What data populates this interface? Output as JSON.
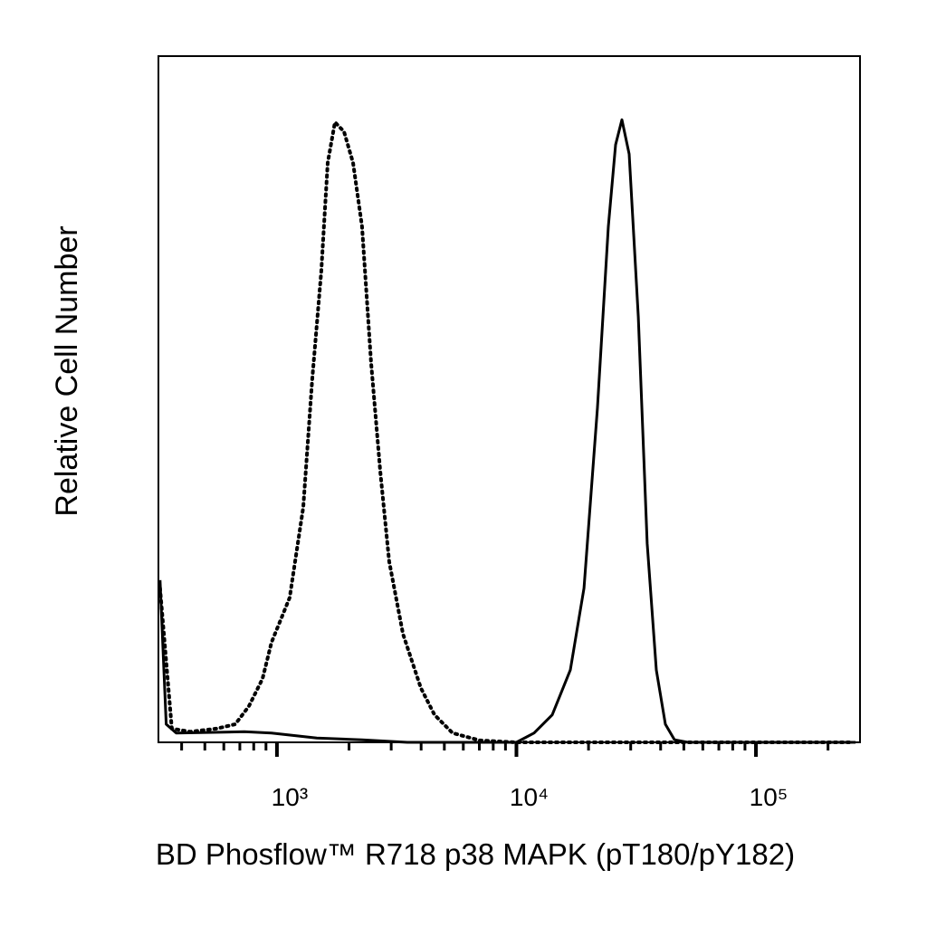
{
  "chart_data": {
    "type": "line",
    "x_label": "BD Phosflow™ R718 p38 MAPK (pT180/pY182)",
    "y_label": "Relative Cell Number",
    "xscale": "log",
    "xlim": [
      320,
      272000
    ],
    "ylim": [
      0,
      110
    ],
    "xticks": [
      {
        "value": 1000,
        "label": "10³"
      },
      {
        "value": 10000,
        "label": "10⁴"
      },
      {
        "value": 100000,
        "label": "10⁵"
      }
    ],
    "xminorticks": [
      400,
      500,
      600,
      700,
      800,
      900,
      2000,
      3000,
      4000,
      5000,
      6000,
      7000,
      8000,
      9000,
      20000,
      30000,
      40000,
      50000,
      60000,
      70000,
      80000,
      90000,
      200000
    ],
    "series": [
      {
        "color": "#000000",
        "dash": "dotted",
        "x": [
          325,
          364,
          434,
          562,
          670,
          764,
          871,
          949,
          1130,
          1288,
          1403,
          1531,
          1629,
          1746,
          1905,
          2078,
          2266,
          2473,
          2698,
          2942,
          3357,
          3990,
          4549,
          5412,
          7030,
          10000,
          30900,
          249000
        ],
        "values": [
          24.7,
          2.2,
          1.7,
          2.2,
          2.9,
          5.8,
          10.2,
          16.0,
          23.2,
          37.7,
          58.0,
          75.5,
          92.9,
          99.4,
          97.9,
          92.9,
          82.7,
          60.9,
          43.5,
          29.0,
          17.4,
          8.7,
          4.4,
          1.5,
          0.3,
          0,
          0,
          0
        ]
      },
      {
        "color": "#000000",
        "dash": "solid",
        "x": [
          325,
          345,
          380,
          731,
          949,
          1467,
          2266,
          3503,
          10000,
          11850,
          14100,
          16790,
          19140,
          21790,
          24200,
          25940,
          27560,
          29570,
          32270,
          35160,
          38370,
          41880,
          45700,
          52000,
          260600
        ],
        "values": [
          26.0,
          2.9,
          1.5,
          1.7,
          1.5,
          0.7,
          0.4,
          0,
          0,
          1.5,
          4.4,
          11.6,
          24.7,
          53.7,
          82.7,
          95.8,
          99.8,
          94.3,
          68.2,
          31.9,
          11.6,
          2.9,
          0.4,
          0,
          0
        ]
      }
    ]
  }
}
